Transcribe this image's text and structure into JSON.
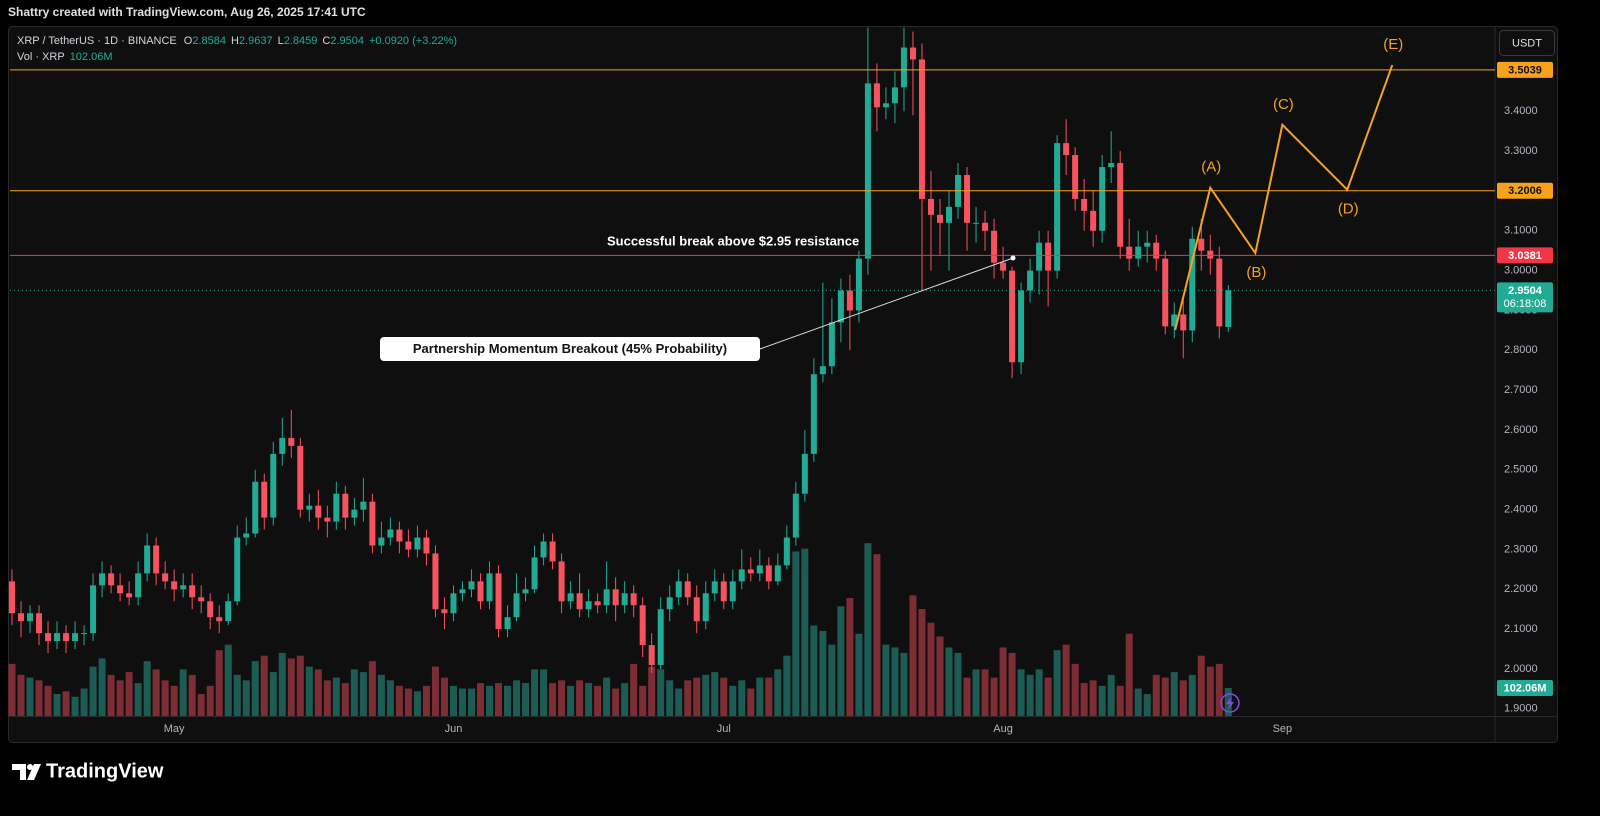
{
  "chart_data": {
    "type": "candlestick",
    "header": "Shattry created with TradingView.com, Aug 26, 2025 17:41 UTC",
    "legend": {
      "symbol": "XRP / TetherUS · 1D · BINANCE",
      "ohlc": [
        {
          "key": "O",
          "value": "2.8584"
        },
        {
          "key": "H",
          "value": "2.9637"
        },
        {
          "key": "L",
          "value": "2.8459"
        },
        {
          "key": "C",
          "value": "2.9504"
        }
      ],
      "change": "+0.0920 (+3.22%)",
      "volume_name": "Vol · XRP",
      "volume": "102.06M"
    },
    "currency": "USDT",
    "brand": "TradingView",
    "annotations": [
      "Successful break above $2.95 resistance",
      "Partnership Momentum Breakout (45% Probability)"
    ],
    "up_color": "#22ab94",
    "down_color": "#f7525f",
    "volume_up_color": "#1d5c55",
    "volume_down_color": "#7d2d34",
    "grid": false,
    "xlim": [
      -0.22,
      164.6
    ],
    "xticks": [
      {
        "value": 18,
        "label": "May"
      },
      {
        "value": 49,
        "label": "Jun"
      },
      {
        "value": 79,
        "label": "Jul"
      },
      {
        "value": 110,
        "label": "Aug"
      },
      {
        "value": 141,
        "label": "Sep"
      }
    ],
    "ylim": [
      1.882,
      3.614
    ],
    "yticks": [
      {
        "value": 1.9,
        "label": "1.9000"
      },
      {
        "value": 2.0,
        "label": "2.0000"
      },
      {
        "value": 2.1,
        "label": "2.1000"
      },
      {
        "value": 2.2,
        "label": "2.2000"
      },
      {
        "value": 2.3,
        "label": "2.3000"
      },
      {
        "value": 2.4,
        "label": "2.4000"
      },
      {
        "value": 2.5,
        "label": "2.5000"
      },
      {
        "value": 2.6,
        "label": "2.6000"
      },
      {
        "value": 2.7,
        "label": "2.7000"
      },
      {
        "value": 2.8,
        "label": "2.8000"
      },
      {
        "value": 2.9,
        "label": "2.9000"
      },
      {
        "value": 3.0,
        "label": "3.0000"
      },
      {
        "value": 3.1,
        "label": "3.1000"
      },
      {
        "value": 3.2,
        "label": "3.2000"
      },
      {
        "value": 3.3,
        "label": "3.3000"
      },
      {
        "value": 3.4,
        "label": "3.4000"
      }
    ],
    "vlim": [
      0,
      700
    ],
    "open": [
      2.22,
      2.14,
      2.12,
      2.14,
      2.09,
      2.07,
      2.09,
      2.07,
      2.09,
      2.09,
      2.21,
      2.24,
      2.21,
      2.19,
      2.18,
      2.24,
      2.31,
      2.24,
      2.22,
      2.2,
      2.21,
      2.18,
      2.17,
      2.13,
      2.12,
      2.17,
      2.33,
      2.34,
      2.47,
      2.38,
      2.54,
      2.58,
      2.56,
      2.4,
      2.41,
      2.38,
      2.37,
      2.44,
      2.38,
      2.4,
      2.42,
      2.31,
      2.33,
      2.35,
      2.32,
      2.3,
      2.33,
      2.29,
      2.15,
      2.14,
      2.19,
      2.2,
      2.22,
      2.17,
      2.24,
      2.1,
      2.13,
      2.19,
      2.2,
      2.28,
      2.32,
      2.27,
      2.17,
      2.19,
      2.15,
      2.17,
      2.16,
      2.2,
      2.16,
      2.19,
      2.16,
      2.06,
      2.01,
      2.15,
      2.18,
      2.22,
      2.18,
      2.12,
      2.19,
      2.22,
      2.17,
      2.22,
      2.25,
      2.24,
      2.26,
      2.22,
      2.26,
      2.33,
      2.44,
      2.54,
      2.74,
      2.76,
      2.87,
      2.95,
      2.9,
      3.03,
      3.47,
      3.41,
      3.42,
      3.46,
      3.56,
      3.53,
      3.18,
      3.14,
      3.12,
      3.16,
      3.24,
      3.12,
      3.12,
      3.1,
      3.02,
      3.0,
      2.77,
      2.95,
      3.0,
      3.07,
      3.0,
      3.32,
      3.29,
      3.18,
      3.15,
      3.1,
      3.26,
      3.27,
      3.06,
      3.03,
      3.06,
      3.07,
      3.03,
      2.86,
      2.89,
      2.85,
      3.08,
      3.05,
      3.03,
      2.8584
    ],
    "high": [
      2.25,
      2.17,
      2.16,
      2.16,
      2.12,
      2.12,
      2.11,
      2.12,
      2.11,
      2.24,
      2.27,
      2.26,
      2.24,
      2.22,
      2.27,
      2.34,
      2.33,
      2.27,
      2.25,
      2.24,
      2.24,
      2.21,
      2.19,
      2.16,
      2.19,
      2.36,
      2.38,
      2.5,
      2.49,
      2.57,
      2.63,
      2.65,
      2.58,
      2.44,
      2.45,
      2.41,
      2.47,
      2.46,
      2.43,
      2.48,
      2.44,
      2.37,
      2.38,
      2.37,
      2.35,
      2.36,
      2.35,
      2.31,
      2.18,
      2.21,
      2.22,
      2.25,
      2.24,
      2.27,
      2.26,
      2.16,
      2.24,
      2.23,
      2.31,
      2.34,
      2.34,
      2.29,
      2.22,
      2.24,
      2.2,
      2.19,
      2.27,
      2.23,
      2.22,
      2.21,
      2.18,
      2.09,
      2.18,
      2.21,
      2.25,
      2.24,
      2.21,
      2.22,
      2.25,
      2.24,
      2.25,
      2.3,
      2.28,
      2.3,
      2.28,
      2.29,
      2.36,
      2.47,
      2.6,
      2.78,
      2.97,
      2.93,
      2.98,
      2.99,
      3.05,
      3.61,
      3.52,
      3.46,
      3.5,
      3.61,
      3.6,
      3.57,
      3.25,
      3.18,
      3.2,
      3.27,
      3.26,
      3.16,
      3.15,
      3.13,
      3.06,
      3.01,
      2.97,
      3.03,
      3.1,
      3.1,
      3.34,
      3.38,
      3.31,
      3.23,
      3.2,
      3.29,
      3.35,
      3.3,
      3.13,
      3.1,
      3.1,
      3.09,
      3.05,
      2.92,
      2.93,
      3.11,
      3.13,
      3.09,
      3.06,
      2.9637
    ],
    "low": [
      2.11,
      2.08,
      2.09,
      2.06,
      2.04,
      2.05,
      2.04,
      2.05,
      2.06,
      2.07,
      2.18,
      2.19,
      2.17,
      2.16,
      2.16,
      2.22,
      2.21,
      2.2,
      2.17,
      2.18,
      2.15,
      2.14,
      2.1,
      2.09,
      2.11,
      2.16,
      2.31,
      2.33,
      2.35,
      2.36,
      2.51,
      2.53,
      2.38,
      2.37,
      2.35,
      2.33,
      2.35,
      2.35,
      2.36,
      2.37,
      2.29,
      2.29,
      2.31,
      2.29,
      2.28,
      2.28,
      2.26,
      2.13,
      2.1,
      2.12,
      2.17,
      2.18,
      2.15,
      2.15,
      2.08,
      2.08,
      2.12,
      2.17,
      2.19,
      2.26,
      2.25,
      2.14,
      2.15,
      2.13,
      2.13,
      2.14,
      2.14,
      2.12,
      2.14,
      2.13,
      2.03,
      1.99,
      2.0,
      2.12,
      2.16,
      2.16,
      2.09,
      2.1,
      2.17,
      2.15,
      2.15,
      2.2,
      2.22,
      2.22,
      2.2,
      2.21,
      2.25,
      2.31,
      2.42,
      2.52,
      2.72,
      2.74,
      2.82,
      2.8,
      2.87,
      2.99,
      3.35,
      3.38,
      3.37,
      3.4,
      3.39,
      2.95,
      3.0,
      3.04,
      3.0,
      3.13,
      3.05,
      3.07,
      3.05,
      2.98,
      2.98,
      2.73,
      2.74,
      2.92,
      2.94,
      2.91,
      2.98,
      3.24,
      3.15,
      3.1,
      3.06,
      3.07,
      3.22,
      3.03,
      3.0,
      3.01,
      3.02,
      3.0,
      2.84,
      2.83,
      2.78,
      2.82,
      3.0,
      2.99,
      2.83,
      2.8459
    ],
    "close": [
      2.14,
      2.12,
      2.14,
      2.09,
      2.07,
      2.09,
      2.07,
      2.09,
      2.09,
      2.21,
      2.24,
      2.21,
      2.19,
      2.18,
      2.24,
      2.31,
      2.24,
      2.22,
      2.2,
      2.21,
      2.18,
      2.17,
      2.13,
      2.12,
      2.17,
      2.33,
      2.34,
      2.47,
      2.38,
      2.54,
      2.58,
      2.56,
      2.4,
      2.41,
      2.38,
      2.37,
      2.44,
      2.38,
      2.4,
      2.42,
      2.31,
      2.33,
      2.35,
      2.32,
      2.3,
      2.33,
      2.29,
      2.15,
      2.14,
      2.19,
      2.2,
      2.22,
      2.17,
      2.24,
      2.1,
      2.13,
      2.19,
      2.2,
      2.28,
      2.32,
      2.27,
      2.17,
      2.19,
      2.15,
      2.17,
      2.16,
      2.2,
      2.16,
      2.19,
      2.16,
      2.06,
      2.01,
      2.15,
      2.18,
      2.22,
      2.18,
      2.12,
      2.19,
      2.22,
      2.17,
      2.22,
      2.25,
      2.24,
      2.26,
      2.22,
      2.26,
      2.33,
      2.44,
      2.54,
      2.74,
      2.76,
      2.87,
      2.95,
      2.9,
      3.03,
      3.47,
      3.41,
      3.42,
      3.46,
      3.56,
      3.53,
      3.18,
      3.14,
      3.12,
      3.16,
      3.24,
      3.12,
      3.12,
      3.1,
      3.02,
      3.0,
      2.77,
      2.95,
      3.0,
      3.07,
      3.0,
      3.32,
      3.29,
      3.18,
      3.15,
      3.1,
      3.26,
      3.27,
      3.06,
      3.03,
      3.06,
      3.07,
      3.03,
      2.86,
      2.89,
      2.85,
      3.08,
      3.05,
      3.03,
      2.86,
      2.9504
    ],
    "volume": [
      190,
      150,
      140,
      130,
      110,
      80,
      90,
      70,
      100,
      180,
      210,
      150,
      130,
      160,
      120,
      200,
      170,
      130,
      110,
      170,
      150,
      80,
      110,
      240,
      260,
      150,
      130,
      200,
      220,
      160,
      230,
      210,
      220,
      180,
      170,
      130,
      140,
      120,
      170,
      160,
      200,
      150,
      130,
      110,
      100,
      90,
      110,
      180,
      140,
      110,
      100,
      100,
      120,
      110,
      120,
      110,
      130,
      120,
      170,
      170,
      120,
      130,
      110,
      130,
      120,
      110,
      140,
      100,
      120,
      190,
      110,
      180,
      170,
      130,
      100,
      130,
      140,
      150,
      160,
      140,
      110,
      130,
      100,
      140,
      140,
      170,
      220,
      600,
      610,
      330,
      310,
      260,
      400,
      430,
      300,
      630,
      590,
      260,
      250,
      230,
      440,
      390,
      340,
      290,
      250,
      230,
      140,
      170,
      170,
      140,
      250,
      230,
      170,
      150,
      170,
      140,
      240,
      260,
      190,
      120,
      130,
      110,
      150,
      110,
      300,
      100,
      80,
      150,
      140,
      160,
      130,
      150,
      220,
      180,
      190,
      102.06
    ],
    "volume_label": {
      "value": 102.06,
      "label": "102.06M"
    },
    "levels": [
      {
        "value": 3.5039,
        "color": "#f7a21b",
        "text_color": "#131313"
      },
      {
        "value": 3.2006,
        "color": "#f7a21b",
        "text_color": "#131313"
      },
      {
        "value": 3.0381,
        "color": "#f23645",
        "text_color": "#ffffff"
      }
    ],
    "last_price": 2.9504,
    "countdown": "06:18:08",
    "wave": {
      "color": "#f7a21b",
      "labels": [
        null,
        "(A)",
        "(B)",
        "(C)",
        "(D)",
        "(E)"
      ],
      "x": [
        129.1,
        133.0,
        138.0,
        141.0,
        148.2,
        153.2
      ],
      "y": [
        2.851,
        3.208,
        3.044,
        3.366,
        3.203,
        3.516
      ]
    }
  }
}
